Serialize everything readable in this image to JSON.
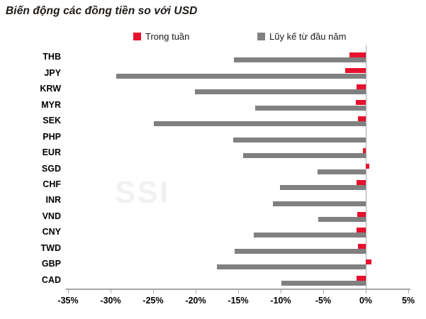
{
  "title": "Biến động các đồng tiền so với USD",
  "watermark": "SSI",
  "legend": [
    {
      "label": "Trong tuần",
      "color": "#E8112D"
    },
    {
      "label": "Lũy kế từ đầu năm",
      "color": "#808080"
    }
  ],
  "colors": {
    "weekly_bar": "#E8112D",
    "ytd_bar": "#808080",
    "axis": "#a6a6a6",
    "watermark": "#f1f1f1"
  },
  "chart_data": {
    "type": "bar",
    "orientation": "horizontal",
    "title": "Biến động các đồng tiền so với USD",
    "categories": [
      "THB",
      "JPY",
      "KRW",
      "MYR",
      "SEK",
      "PHP",
      "EUR",
      "SGD",
      "CHF",
      "INR",
      "VND",
      "CNY",
      "TWD",
      "GBP",
      "CAD"
    ],
    "series": [
      {
        "name": "Trong tuần",
        "color": "#E8112D",
        "values": [
          -1.9,
          -2.4,
          -1.1,
          -1.2,
          -0.9,
          0.0,
          -0.3,
          0.4,
          -1.1,
          0.0,
          -1.0,
          -1.1,
          -0.9,
          0.7,
          -1.1
        ]
      },
      {
        "name": "Lũy kế từ đầu năm",
        "color": "#808080",
        "values": [
          -15.5,
          -29.3,
          -20.1,
          -13.0,
          -24.9,
          -15.6,
          -14.4,
          -5.7,
          -10.1,
          -10.9,
          -5.6,
          -13.2,
          -15.4,
          -17.5,
          -9.9
        ]
      }
    ],
    "xlim": [
      -35,
      5
    ],
    "xtick_values": [
      -35,
      -30,
      -25,
      -20,
      -15,
      -10,
      -5,
      0,
      5
    ],
    "xtick_labels": [
      "-35%",
      "-30%",
      "-25%",
      "-20%",
      "-15%",
      "-10%",
      "-5%",
      "0%",
      "5%"
    ],
    "unit": "%",
    "grid": false,
    "zero_line": true,
    "legend_position": "top"
  }
}
